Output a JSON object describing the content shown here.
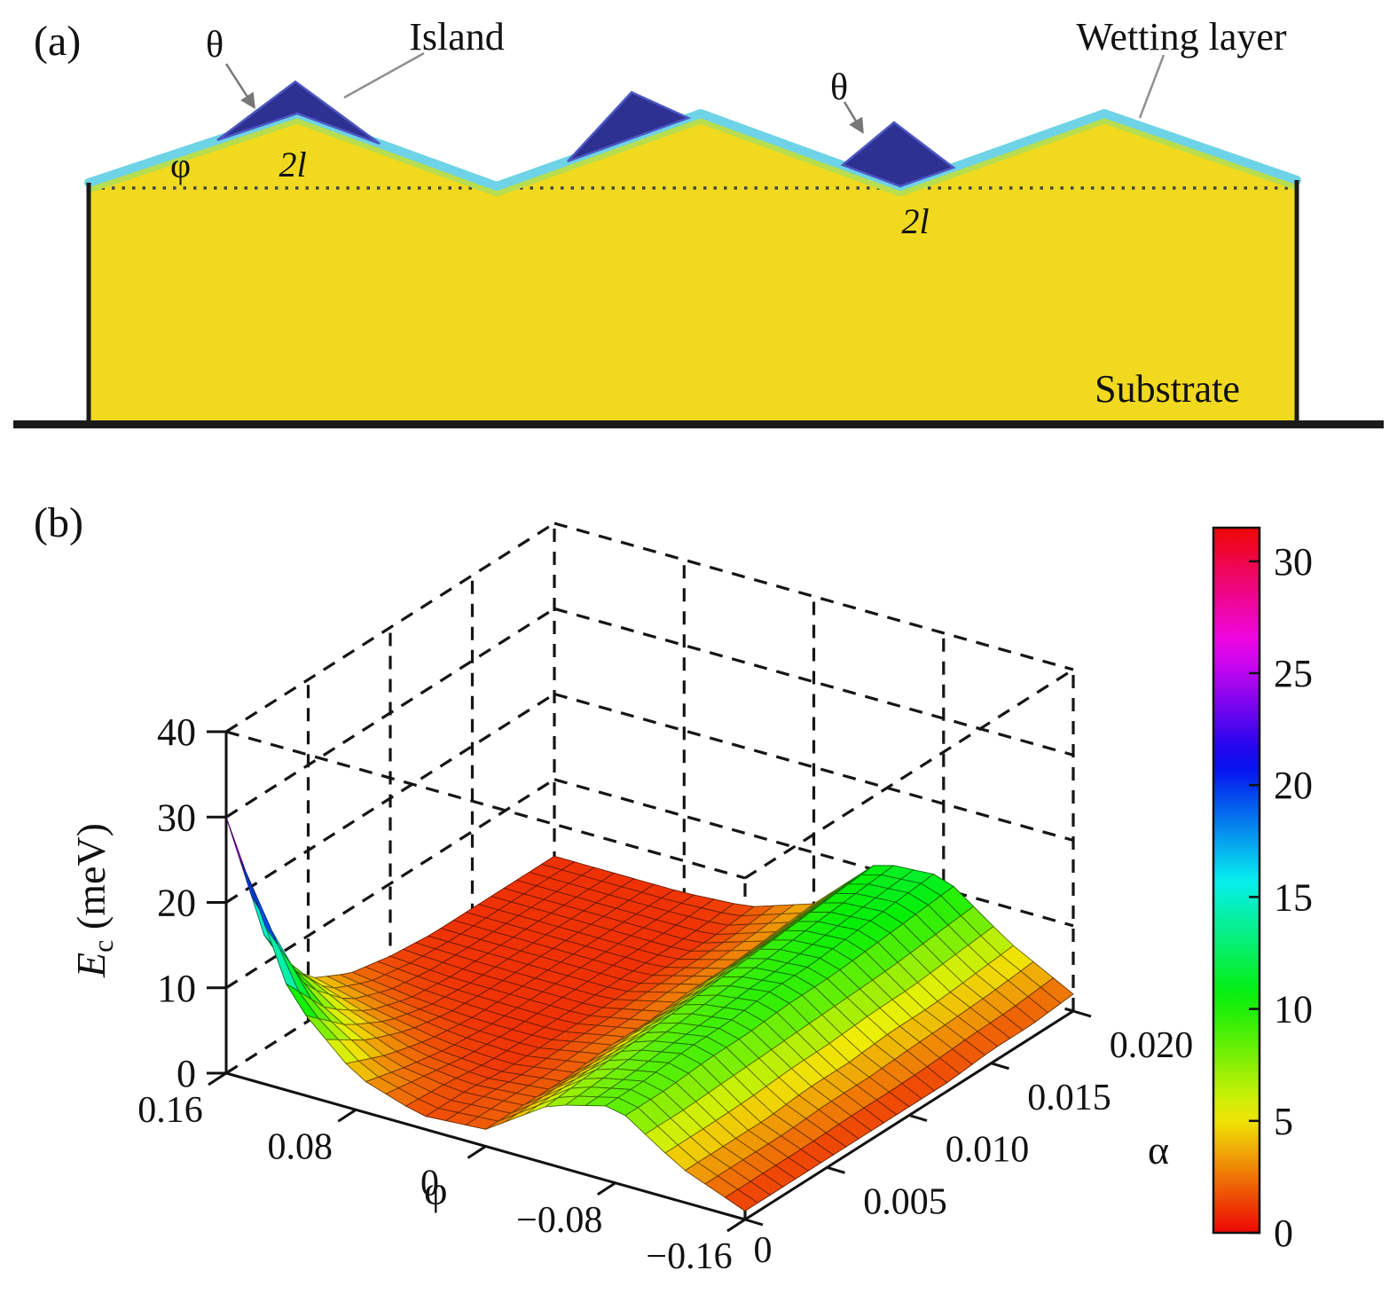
{
  "panel_a": {
    "tag": "(a)",
    "theta_label_1": "θ",
    "theta_label_2": "θ",
    "island_label": "Island",
    "wetting_layer_label": "Wetting layer",
    "phi_label": "φ",
    "half_period_label_1": "2l",
    "half_period_label_2": "2l",
    "substrate_label": "Substrate",
    "colors": {
      "substrate_yellow": "#f0d91e",
      "wetting_layer_cyan": "#6ed3e6",
      "wetting_layer_green_edge": "#b8dd4e",
      "island_blue": "#2e3192"
    }
  },
  "panel_b": {
    "tag": "(b)",
    "z_axis": {
      "var": "E",
      "sub": "c",
      "unit": " (meV)",
      "ticks": [
        "0",
        "10",
        "20",
        "30",
        "40"
      ]
    },
    "phi_axis": {
      "label": "φ",
      "ticks": [
        "0.16",
        "0.08",
        "0",
        "−0.08",
        "−0.16"
      ]
    },
    "alpha_axis": {
      "label": "α",
      "ticks": [
        "0",
        "0.005",
        "0.010",
        "0.015",
        "0.020"
      ]
    },
    "colorbar_ticks": [
      "0",
      "5",
      "10",
      "15",
      "20",
      "25",
      "30"
    ]
  },
  "chart_data": {
    "type": "surface",
    "title": "",
    "xlabel": "φ",
    "ylabel": "α",
    "zlabel": "E_c (meV)",
    "x_phi": [
      0.16,
      0.12,
      0.08,
      0.04,
      0,
      -0.04,
      -0.08,
      -0.12,
      -0.16
    ],
    "y_alpha": [
      0,
      0.0025,
      0.005,
      0.0075,
      0.01,
      0.0125,
      0.015,
      0.0175,
      0.02
    ],
    "z_Ec": [
      [
        30,
        12,
        5,
        2.5,
        1.5,
        1,
        1,
        1,
        1
      ],
      [
        11,
        6,
        3,
        1.5,
        1,
        1,
        1,
        1,
        1
      ],
      [
        4,
        2.5,
        1.5,
        1,
        1,
        1,
        1,
        1,
        1
      ],
      [
        1.5,
        1.5,
        1,
        1,
        1,
        1,
        1,
        1,
        1.5
      ],
      [
        2,
        2,
        2,
        2.5,
        2.5,
        3,
        3,
        3.5,
        4
      ],
      [
        7,
        7.5,
        8,
        8.5,
        9,
        9.5,
        10,
        10.5,
        11
      ],
      [
        9,
        9,
        9.5,
        9.5,
        10,
        10,
        10.5,
        11,
        11.5
      ],
      [
        4,
        4,
        4,
        4.5,
        4.5,
        5,
        5,
        5.5,
        6
      ],
      [
        1,
        1,
        1,
        1,
        1,
        1,
        1.5,
        1.5,
        2
      ]
    ],
    "zlim": [
      0,
      40
    ],
    "z_tick_values": [
      0,
      10,
      20,
      30,
      40
    ],
    "phi_tick_values": [
      0.16,
      0.08,
      0,
      -0.08,
      -0.16
    ],
    "alpha_tick_values": [
      0,
      0.005,
      0.01,
      0.015,
      0.02
    ],
    "colorbar": {
      "min": 0,
      "max": 31.5,
      "tick_values": [
        0,
        5,
        10,
        15,
        20,
        25,
        30
      ]
    },
    "colormap": "reversed-hsv red→yellow→green→cyan→blue→magenta→red",
    "grid": "dashed box"
  }
}
